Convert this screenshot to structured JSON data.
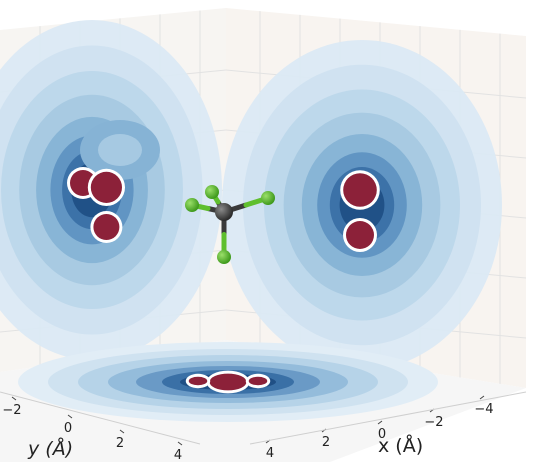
{
  "chart_data": {
    "type": "3d-contour-projections",
    "xlabel": "x (Å)",
    "ylabel": "y (Å)",
    "x_ticks": [
      "−4",
      "−2",
      "0",
      "2",
      "4"
    ],
    "y_ticks": [
      "−2",
      "0",
      "2",
      "4"
    ],
    "grid": true,
    "colormap": {
      "outer": "#dbe9f4",
      "mid": "#9dc4de",
      "deep": "#1f4f85",
      "core": "#ffffff",
      "peak": "#8c2139"
    },
    "molecule": {
      "center_atom_color": "#3a3a3a",
      "ligand_atom_color": "#5fbf2e",
      "ligand_count": 4
    },
    "projections": [
      {
        "plane": "left-wall",
        "peaks": [
          {
            "u": -3.0,
            "v": 1.0,
            "strength": 1.0
          },
          {
            "u": -1.2,
            "v": 0.8,
            "strength": 1.2
          },
          {
            "u": -1.2,
            "v": -1.0,
            "strength": 1.0
          }
        ]
      },
      {
        "plane": "right-wall",
        "peaks": [
          {
            "u": 0.0,
            "v": 0.8,
            "strength": 1.2
          },
          {
            "u": 0.0,
            "v": -1.0,
            "strength": 1.0
          }
        ]
      },
      {
        "plane": "floor",
        "peaks": [
          {
            "u": 0.0,
            "v": 0.0,
            "strength": 1.2
          },
          {
            "u": -1.5,
            "v": 0.1,
            "strength": 0.6
          },
          {
            "u": 1.5,
            "v": 0.1,
            "strength": 0.6
          }
        ]
      }
    ]
  }
}
